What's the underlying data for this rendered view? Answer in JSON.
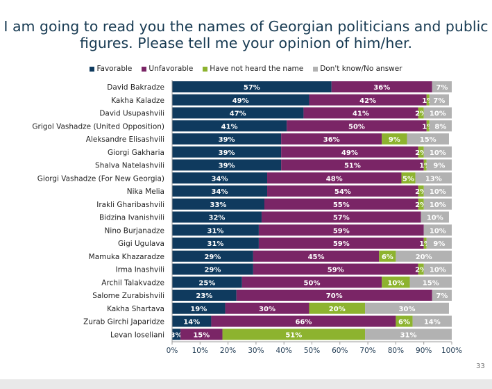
{
  "chart_data": {
    "type": "bar",
    "orientation": "horizontal-stacked",
    "title": "I am going to read you the names of Georgian politicians and public figures. Please tell me your opinion of him/her.",
    "title_lines": [
      "I am going to read you the names of Georgian politicians and public",
      "figures. Please tell me your opinion of him/her."
    ],
    "categories": [
      "David Bakradze",
      "Kakha Kaladze",
      "David Usupashvili",
      "Grigol Vashadze (United Opposition)",
      "Aleksandre Elisashvili",
      "Giorgi Gakharia",
      "Shalva Natelashvili",
      "Giorgi Vashadze (For New Georgia)",
      "Nika Melia",
      "Irakli Gharibashvili",
      "Bidzina Ivanishvili",
      "Nino Burjanadze",
      "Gigi Ugulava",
      "Mamuka Khazaradze",
      "Irma Inashvili",
      "Archil Talakvadze",
      "Salome Zurabishvili",
      "Kakha Shartava",
      "Zurab Girchi Japaridze",
      "Levan Ioseliani"
    ],
    "series": [
      {
        "name": "Favorable",
        "color": "#0f3a5e",
        "values": [
          57,
          49,
          47,
          41,
          39,
          39,
          39,
          34,
          34,
          33,
          32,
          31,
          31,
          29,
          29,
          25,
          23,
          19,
          14,
          3
        ]
      },
      {
        "name": "Unfavorable",
        "color": "#7a2566",
        "values": [
          36,
          42,
          41,
          50,
          36,
          49,
          51,
          48,
          54,
          55,
          57,
          59,
          59,
          45,
          59,
          50,
          70,
          30,
          66,
          15
        ]
      },
      {
        "name": "Have not heard the name",
        "color": "#8db32f",
        "values": [
          0,
          1,
          2,
          1,
          9,
          2,
          1,
          5,
          2,
          2,
          0,
          0,
          1,
          6,
          2,
          10,
          0,
          20,
          6,
          51
        ]
      },
      {
        "name": "Don't know/No answer",
        "color": "#b2b2b2",
        "values": [
          7,
          7,
          10,
          8,
          15,
          10,
          9,
          13,
          10,
          10,
          10,
          10,
          9,
          20,
          10,
          15,
          7,
          30,
          14,
          31
        ]
      }
    ],
    "xticks": [
      "0%",
      "10%",
      "20%",
      "30%",
      "40%",
      "50%",
      "60%",
      "70%",
      "80%",
      "90%",
      "100%"
    ],
    "xlim": [
      0,
      100
    ],
    "legend_placement": "top",
    "data_labels": true
  },
  "page_number": "33"
}
